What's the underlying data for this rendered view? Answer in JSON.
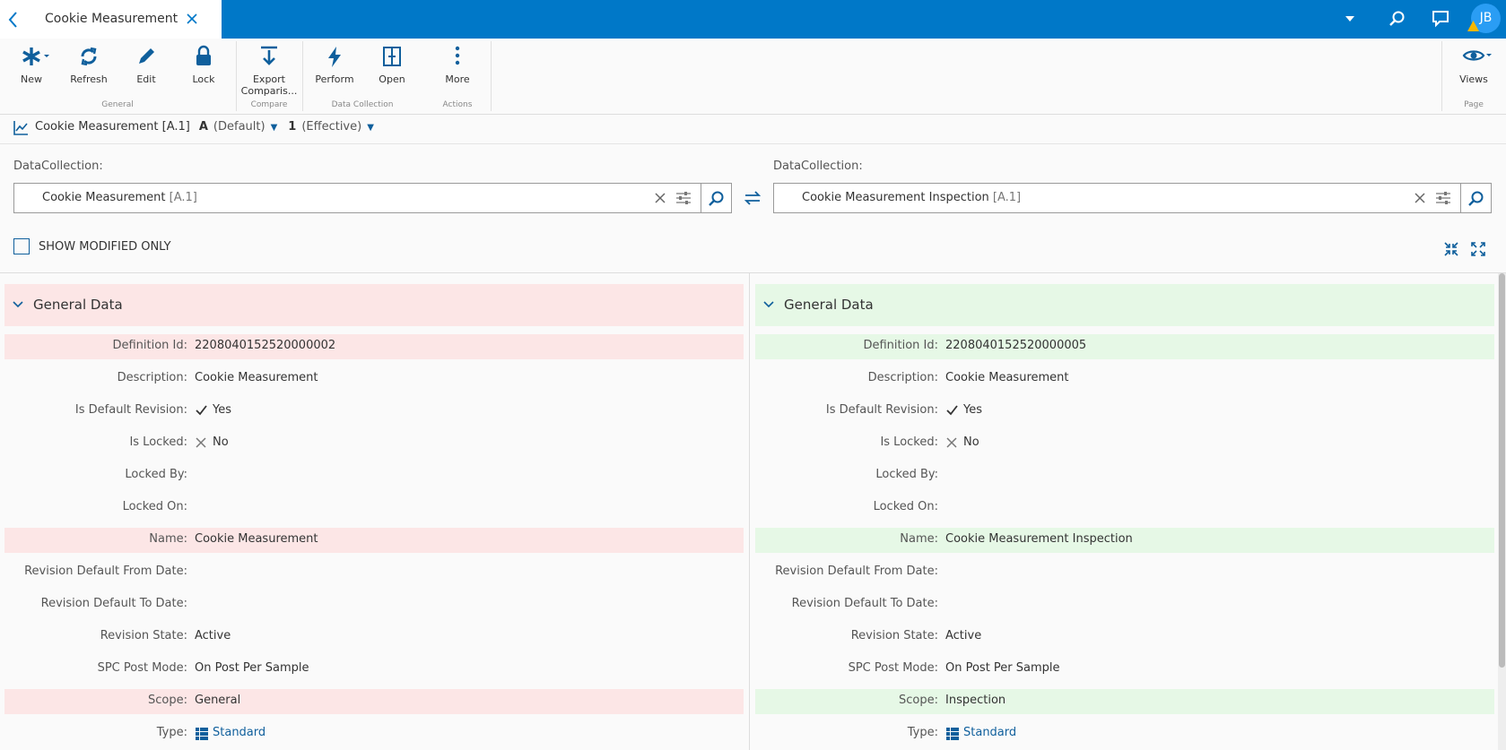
{
  "header": {
    "tab_title": "Cookie Measurement",
    "avatar": "JB"
  },
  "toolbar": {
    "groups": [
      {
        "label": "General",
        "buttons": [
          "New",
          "Refresh",
          "Edit",
          "Lock"
        ]
      },
      {
        "label": "Compare",
        "buttons": [
          "Export Comparis..."
        ]
      },
      {
        "label": "Data Collection",
        "buttons": [
          "Perform",
          "Open"
        ]
      },
      {
        "label": "Actions",
        "buttons": [
          "More"
        ]
      },
      {
        "label": "Page",
        "buttons": [
          "Views"
        ]
      }
    ]
  },
  "breadcrumb": {
    "name": "Cookie Measurement [A.1]",
    "revision": "A",
    "revision_note": "(Default)",
    "version": "1",
    "version_note": "(Effective)"
  },
  "compare": {
    "left": {
      "label": "DataCollection:",
      "value": "Cookie Measurement",
      "revision": "[A.1]"
    },
    "right": {
      "label": "DataCollection:",
      "value": "Cookie Measurement Inspection",
      "revision": "[A.1]"
    },
    "checkbox": "SHOW MODIFIED ONLY"
  },
  "section": {
    "title": "General Data",
    "rows": [
      {
        "label": "Definition Id:",
        "left": "2208040152520000002",
        "right": "2208040152520000005",
        "changed": true
      },
      {
        "label": "Description:",
        "left": "Cookie Measurement",
        "right": "Cookie Measurement",
        "changed": false
      },
      {
        "label": "Is Default Revision:",
        "left": "Yes",
        "right": "Yes",
        "changed": false,
        "icon": "check"
      },
      {
        "label": "Is Locked:",
        "left": "No",
        "right": "No",
        "changed": false,
        "icon": "cross"
      },
      {
        "label": "Locked By:",
        "left": null,
        "right": null,
        "changed": false
      },
      {
        "label": "Locked On:",
        "left": null,
        "right": null,
        "changed": false
      },
      {
        "label": "Name:",
        "left": "Cookie Measurement",
        "right": "Cookie Measurement Inspection",
        "changed": true
      },
      {
        "label": "Revision Default From Date:",
        "left": null,
        "right": null,
        "changed": false
      },
      {
        "label": "Revision Default To Date:",
        "left": null,
        "right": null,
        "changed": false
      },
      {
        "label": "Revision State:",
        "left": "Active",
        "right": "Active",
        "changed": false
      },
      {
        "label": "SPC Post Mode:",
        "left": "On Post Per Sample",
        "right": "On Post Per Sample",
        "changed": false
      },
      {
        "label": "Scope:",
        "left": "General",
        "right": "Inspection",
        "changed": true
      },
      {
        "label": "Type:",
        "left": "Standard",
        "right": "Standard",
        "changed": false,
        "icon": "list"
      }
    ]
  }
}
